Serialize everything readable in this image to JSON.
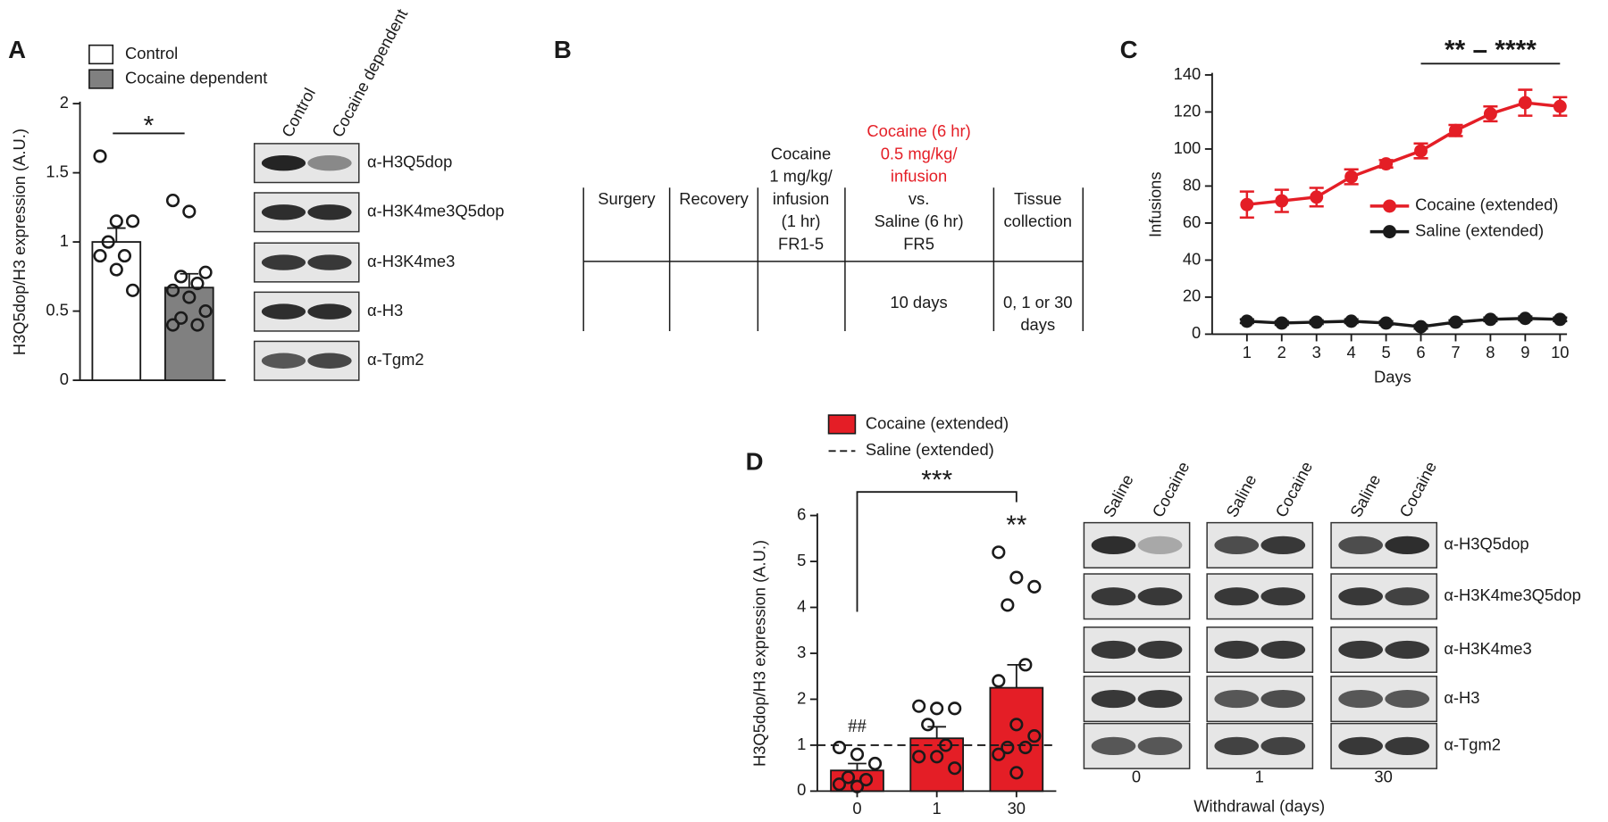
{
  "panel_labels": [
    "A",
    "B",
    "C",
    "D"
  ],
  "chart_data": [
    {
      "type": "bar",
      "ylabel": "H3Q5dop/H3 expression (A.U.)",
      "ylim": [
        0,
        2
      ],
      "yticks": [
        0,
        0.5,
        1,
        1.5,
        2
      ],
      "series": [
        {
          "name": "Control",
          "color": "#ffffff",
          "values": [
            1.0
          ],
          "errors": [
            0.1
          ],
          "points": [
            [
              1.62,
              1.15,
              1.15,
              1.0,
              0.9,
              0.9,
              0.8,
              0.65
            ]
          ]
        },
        {
          "name": "Cocaine dependent",
          "color": "#808080",
          "values": [
            0.67
          ],
          "errors": [
            0.1
          ],
          "points": [
            [
              1.3,
              1.22,
              0.78,
              0.75,
              0.7,
              0.65,
              0.6,
              0.5,
              0.45,
              0.4,
              0.4
            ]
          ]
        }
      ],
      "annotations": [
        "*"
      ]
    },
    {
      "type": "line",
      "xlabel": "Days",
      "ylabel": "Infusions",
      "x": [
        1,
        2,
        3,
        4,
        5,
        6,
        7,
        8,
        9,
        10
      ],
      "xlim": [
        0,
        10.2
      ],
      "xticks": [
        1,
        2,
        3,
        4,
        5,
        6,
        7,
        8,
        9,
        10
      ],
      "ylim": [
        0,
        140
      ],
      "yticks": [
        0,
        20,
        40,
        60,
        80,
        100,
        120,
        140
      ],
      "series": [
        {
          "name": "Cocaine (extended)",
          "color": "#e41e26",
          "values": [
            70,
            72,
            74,
            85,
            92,
            99,
            110,
            119,
            125,
            123
          ],
          "errors": [
            7,
            6,
            5,
            4,
            2,
            4,
            3,
            4,
            7,
            5
          ]
        },
        {
          "name": "Saline (extended)",
          "color": "#1a1a1a",
          "values": [
            7,
            6,
            6.5,
            7,
            6,
            4,
            6.5,
            8,
            8.5,
            8
          ],
          "errors": [
            1,
            1,
            1,
            1,
            1,
            1,
            1,
            1,
            1,
            1
          ]
        }
      ],
      "annotations": [
        "** – ****"
      ]
    },
    {
      "type": "bar",
      "categories": [
        "0",
        "1",
        "30"
      ],
      "xlabel": "Withdrawal (days)",
      "ylabel": "H3Q5dop/H3 expression (A.U.)",
      "ylim": [
        0,
        6
      ],
      "yticks": [
        0,
        1,
        2,
        3,
        4,
        5,
        6
      ],
      "series": [
        {
          "name": "Cocaine (extended)",
          "color": "#e41e26",
          "values": [
            0.45,
            1.15,
            2.25
          ],
          "errors": [
            0.15,
            0.25,
            0.5
          ],
          "points": [
            [
              0.95,
              0.8,
              0.6,
              0.3,
              0.25,
              0.15,
              0.1
            ],
            [
              1.85,
              1.8,
              1.8,
              1.45,
              1.0,
              0.75,
              0.75,
              0.5
            ],
            [
              5.2,
              4.65,
              4.45,
              4.05,
              2.75,
              2.4,
              1.45,
              1.2,
              0.95,
              0.95,
              0.8,
              0.4
            ]
          ]
        }
      ],
      "reference_line": {
        "name": "Saline (extended)",
        "value": 1
      },
      "annotations": [
        "***",
        "**",
        "##"
      ]
    }
  ],
  "panel_b": {
    "columns": [
      {
        "header": [
          "Surgery"
        ]
      },
      {
        "header": [
          "Recovery"
        ]
      },
      {
        "header": [
          "Cocaine",
          "1 mg/kg/",
          "infusion",
          "(1 hr)",
          "FR1-5"
        ]
      },
      {
        "header_red": [
          "Cocaine (6 hr)",
          "0.5 mg/kg/",
          "infusion"
        ],
        "header": [
          "vs.",
          "Saline (6 hr)",
          "FR5"
        ],
        "body": [
          "10 days"
        ]
      },
      {
        "header": [
          "Tissue",
          "collection"
        ],
        "body": [
          "0, 1 or 30",
          "days"
        ]
      }
    ]
  },
  "blot_a": {
    "columns": [
      "Control",
      "Cocaine dependent"
    ],
    "rows": [
      "α-H3Q5dop",
      "α-H3K4me3Q5dop",
      "α-H3K4me3",
      "α-H3",
      "α-Tgm2"
    ]
  },
  "blot_d": {
    "groups": [
      "0",
      "1",
      "30"
    ],
    "columns": [
      "Saline",
      "Cocaine"
    ],
    "rows": [
      "α-H3Q5dop",
      "α-H3K4me3Q5dop",
      "α-H3K4me3",
      "α-H3",
      "α-Tgm2"
    ],
    "xlabel": "Withdrawal (days)"
  }
}
